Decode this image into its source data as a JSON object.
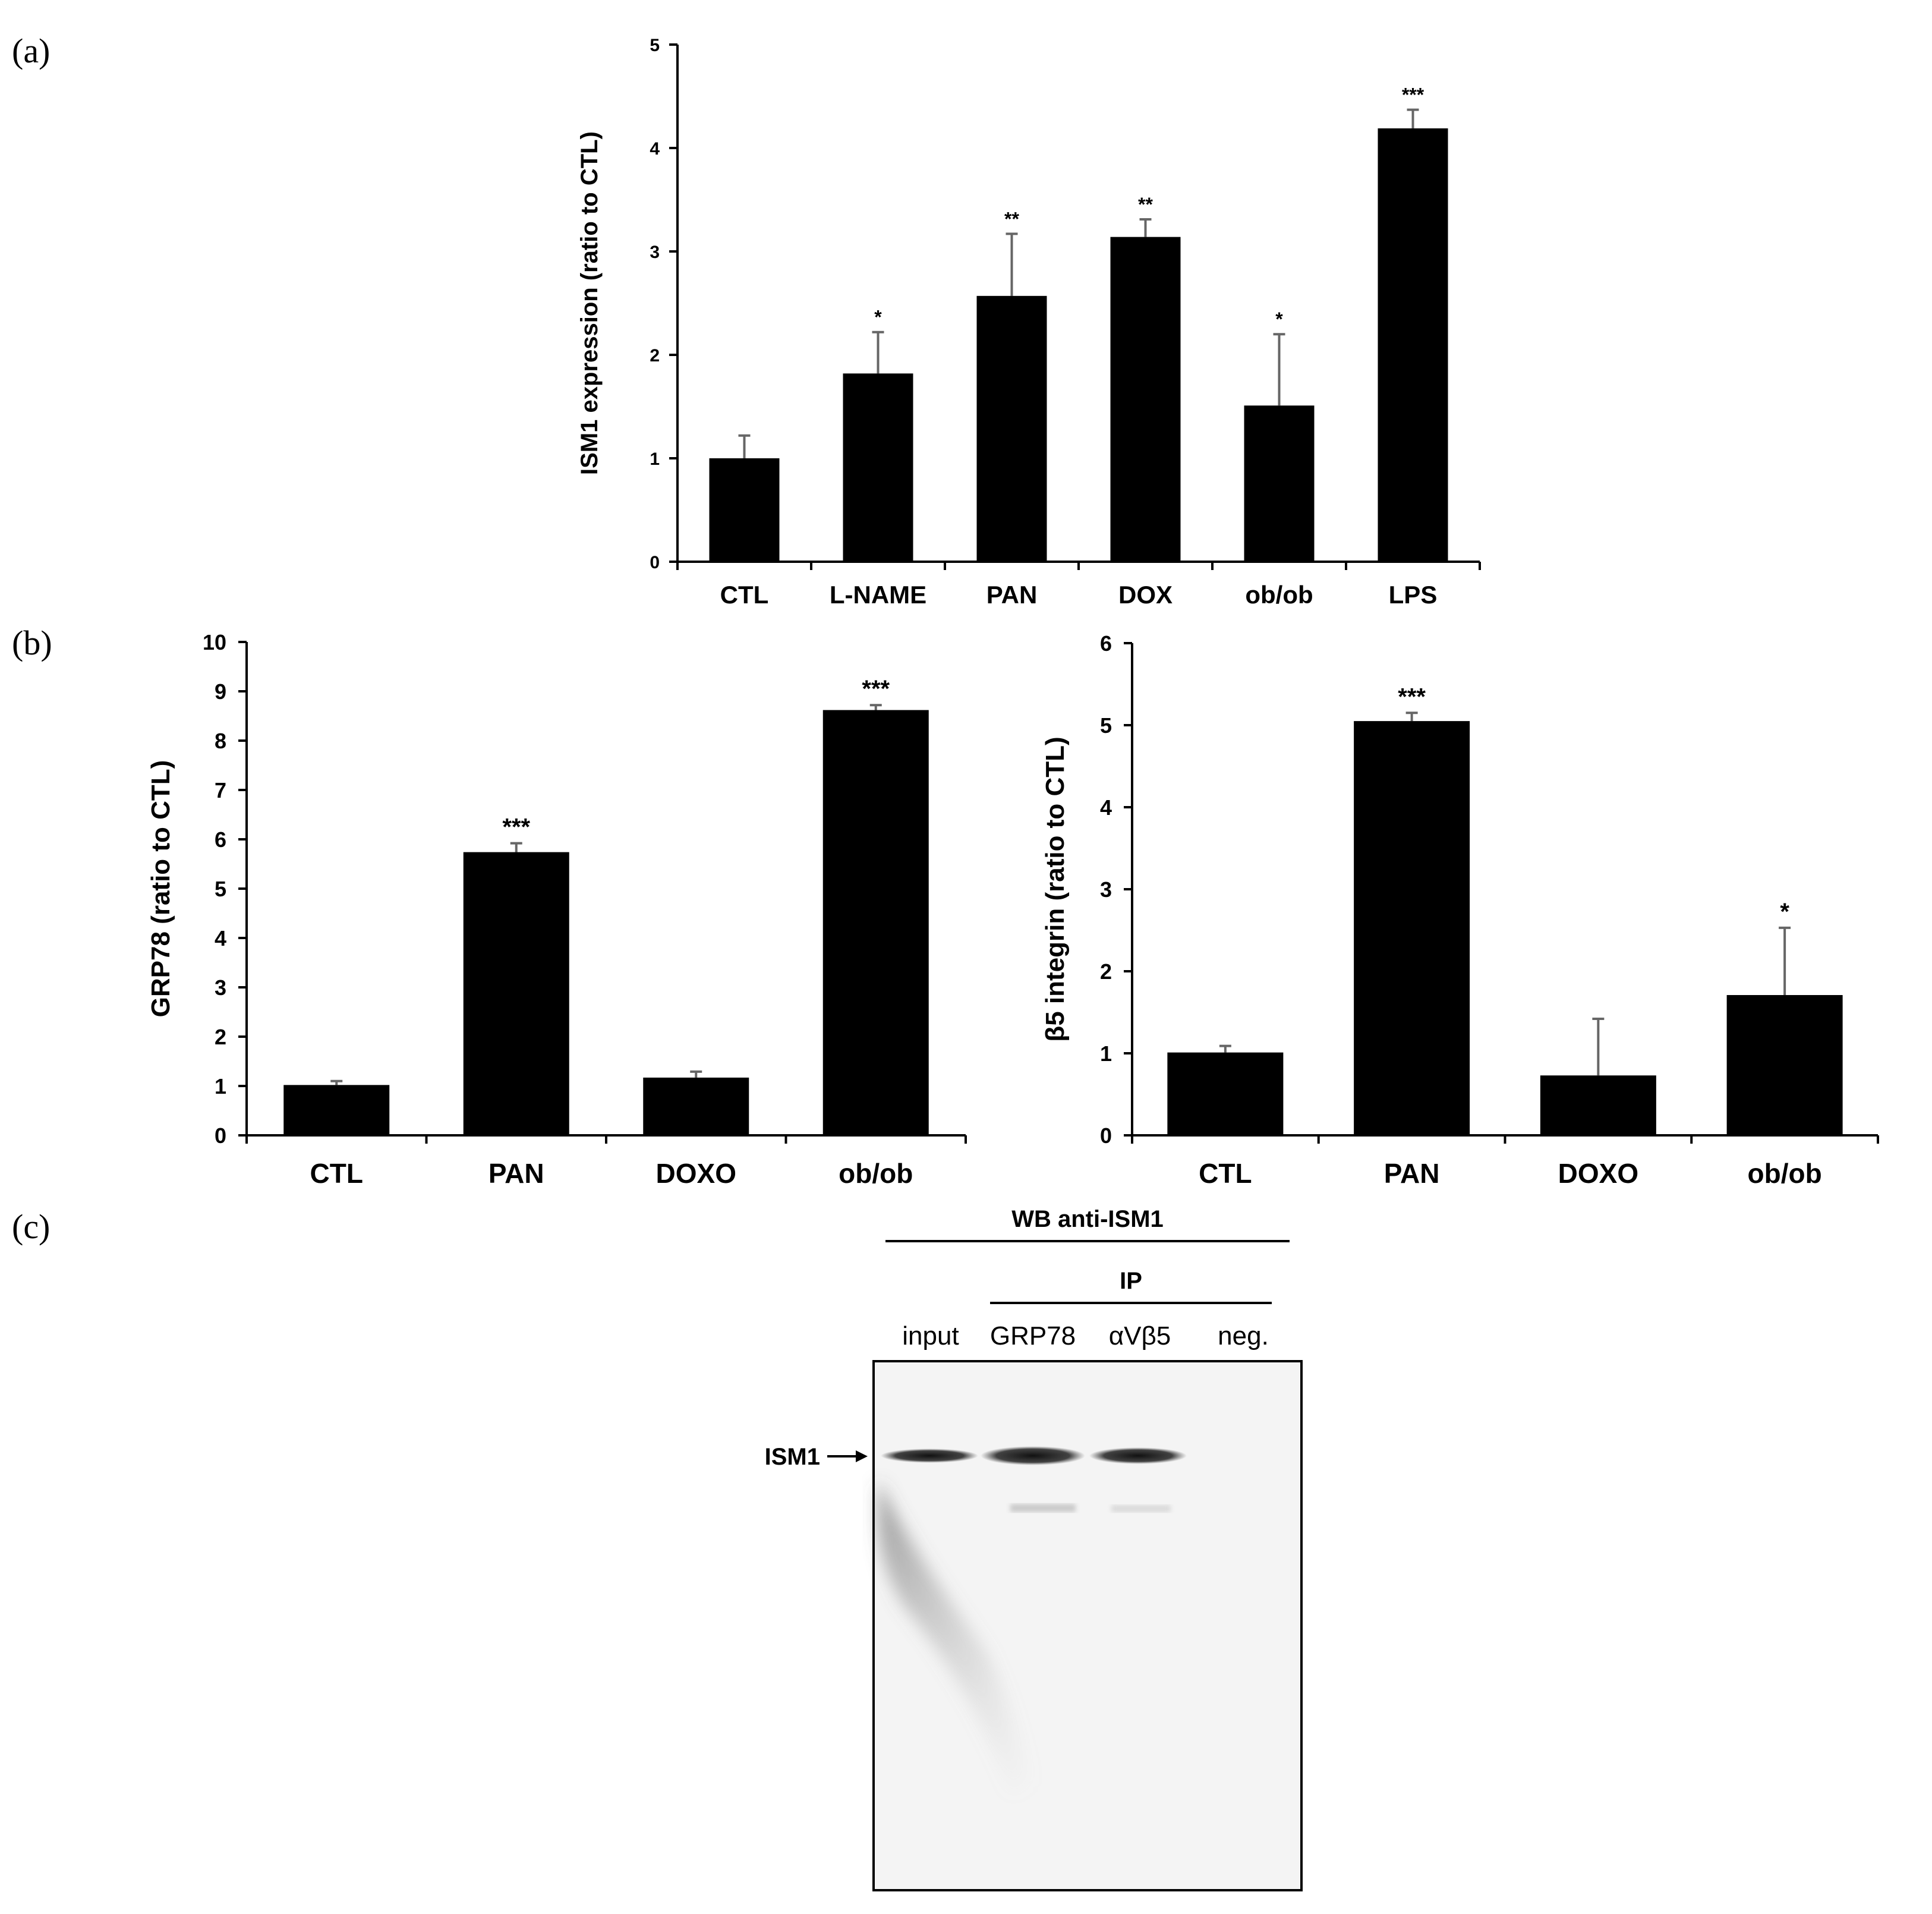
{
  "panel_labels": [
    "(a)",
    "(b)",
    "(c)"
  ],
  "chart_data": [
    {
      "id": "a",
      "type": "bar",
      "ylabel": "ISM1 expression (ratio to CTL)",
      "categories": [
        "CTL",
        "L-NAME",
        "PAN",
        "DOX",
        "ob/ob",
        "LPS"
      ],
      "values": [
        1.0,
        1.82,
        2.57,
        3.14,
        1.51,
        4.19
      ],
      "errors": [
        0.22,
        0.4,
        0.6,
        0.17,
        0.69,
        0.18
      ],
      "significance": [
        "",
        "*",
        "**",
        "**",
        "*",
        "***"
      ],
      "ylim": [
        0,
        5
      ],
      "yticks": [
        "0",
        "1",
        "2",
        "3",
        "4",
        "5"
      ]
    },
    {
      "id": "b-left",
      "type": "bar",
      "ylabel": "GRP78 (ratio to CTL)",
      "categories": [
        "CTL",
        "PAN",
        "DOXO",
        "ob/ob"
      ],
      "values": [
        1.02,
        5.74,
        1.17,
        8.62
      ],
      "errors": [
        0.08,
        0.18,
        0.12,
        0.1
      ],
      "significance": [
        "",
        "***",
        "",
        "***"
      ],
      "ylim": [
        0,
        10
      ],
      "yticks": [
        "0",
        "1",
        "2",
        "3",
        "4",
        "5",
        "6",
        "7",
        "8",
        "9",
        "10"
      ]
    },
    {
      "id": "b-right",
      "type": "bar",
      "ylabel": "β5 integrin (ratio to CTL)",
      "categories": [
        "CTL",
        "PAN",
        "DOXO",
        "ob/ob"
      ],
      "values": [
        1.01,
        5.05,
        0.73,
        1.71
      ],
      "errors": [
        0.08,
        0.1,
        0.69,
        0.82
      ],
      "significance": [
        "",
        "***",
        "",
        "*"
      ],
      "ylim": [
        0,
        6
      ],
      "yticks": [
        "0",
        "1",
        "2",
        "3",
        "4",
        "5",
        "6"
      ]
    }
  ],
  "blot": {
    "header": "WB anti-ISM1",
    "ip_label": "IP",
    "lanes": [
      "input",
      "GRP78",
      "αVβ5",
      "neg."
    ],
    "band_label": "ISM1"
  }
}
